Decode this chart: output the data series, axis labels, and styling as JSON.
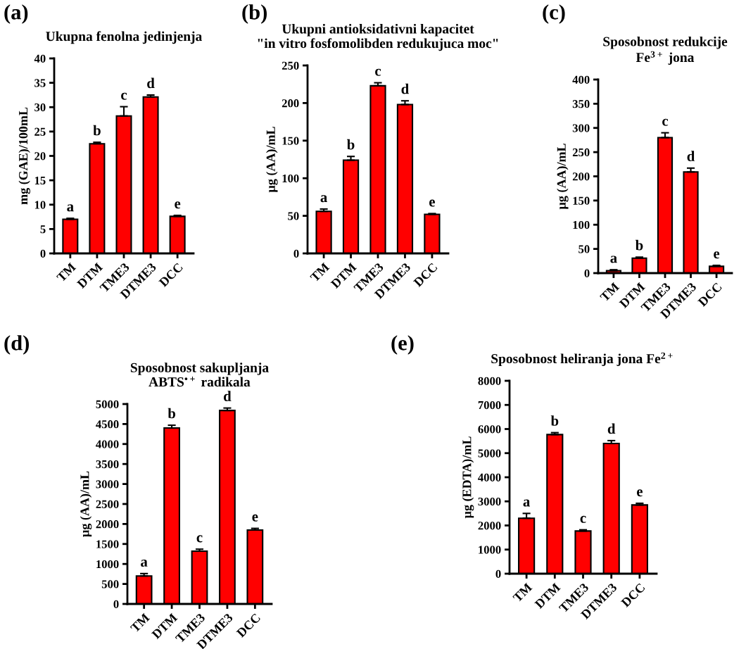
{
  "chart_data": [
    {
      "type": "bar",
      "title": "Ukupna fenolna jedinjenja",
      "ylabel": "mg (GAE)/100mL",
      "categories": [
        "TM",
        "DTM",
        "TME3",
        "DTME3",
        "DCC"
      ],
      "color": "#ff0000",
      "values": [
        7.0,
        22.5,
        28.2,
        32.1,
        7.6
      ],
      "errors": [
        [
          7.0,
          7.2
        ],
        [
          22.5,
          22.8
        ],
        [
          28.2,
          30.1
        ],
        [
          32.1,
          32.5
        ],
        [
          7.6,
          7.8
        ]
      ],
      "ylim": [
        0,
        40
      ],
      "yticks": [
        0,
        5,
        10,
        15,
        20,
        25,
        30,
        35,
        40
      ],
      "grid": false,
      "legend": false,
      "annotations": [
        "(a)",
        "a",
        "b",
        "c",
        "d",
        "e"
      ]
    },
    {
      "type": "bar",
      "title": "Ukupni antioksidativni kapacitet\n\"in vitro fosfomolibden redukujuca moc\"",
      "ylabel": "µg (AA)/mL",
      "categories": [
        "TM",
        "DTM",
        "TME3",
        "DTME3",
        "DCC"
      ],
      "color": "#ff0000",
      "values": [
        56,
        124,
        223,
        198,
        52
      ],
      "errors": [
        [
          56,
          59
        ],
        [
          124,
          129
        ],
        [
          223,
          227
        ],
        [
          198,
          203
        ],
        [
          52,
          53
        ]
      ],
      "ylim": [
        0,
        250
      ],
      "yticks": [
        0,
        50,
        100,
        150,
        200,
        250
      ],
      "grid": false,
      "legend": false,
      "annotations": [
        "(b)",
        "a",
        "b",
        "c",
        "d",
        "e"
      ]
    },
    {
      "type": "bar",
      "title": "Sposobnost redukcije\nFe$^{3+}$ jona",
      "ylabel": "µg (AA)/mL",
      "categories": [
        "TM",
        "DTM",
        "TME3",
        "DTME3",
        "DCC"
      ],
      "color": "#ff0000",
      "values": [
        5,
        31,
        280,
        209,
        14
      ],
      "errors": [
        [
          5,
          7
        ],
        [
          31,
          33
        ],
        [
          280,
          290
        ],
        [
          209,
          217
        ],
        [
          14,
          16
        ]
      ],
      "ylim": [
        0,
        400
      ],
      "yticks": [
        0,
        50,
        100,
        150,
        200,
        250,
        300,
        350,
        400
      ],
      "grid": false,
      "legend": false,
      "annotations": [
        "(c)",
        "a",
        "b",
        "c",
        "d",
        "e"
      ]
    },
    {
      "type": "bar",
      "title": "Sposobnost sakupljanja\nABTS$^{•+}$ radikala",
      "ylabel": "µg (AA)/mL",
      "categories": [
        "TM",
        "DTM",
        "TME3",
        "DTME3",
        "DCC"
      ],
      "color": "#ff0000",
      "values": [
        700,
        4400,
        1320,
        4840,
        1850
      ],
      "errors": [
        [
          700,
          760
        ],
        [
          4400,
          4470
        ],
        [
          1320,
          1370
        ],
        [
          4840,
          4900
        ],
        [
          1850,
          1890
        ]
      ],
      "ylim": [
        0,
        5000
      ],
      "yticks": [
        0,
        500,
        1000,
        1500,
        2000,
        2500,
        3000,
        3500,
        4000,
        4500,
        5000
      ],
      "grid": false,
      "legend": false,
      "annotations": [
        "(d)",
        "a",
        "b",
        "c",
        "d",
        "e"
      ]
    },
    {
      "type": "bar",
      "title": "Sposobnost heliranja jona Fe$^{2+}$",
      "ylabel": "µg (EDTA)/mL",
      "categories": [
        "TM",
        "DTM",
        "TME3",
        "DTME3",
        "DCC"
      ],
      "color": "#ff0000",
      "values": [
        2300,
        5770,
        1770,
        5400,
        2850
      ],
      "errors": [
        [
          2300,
          2500
        ],
        [
          5770,
          5850
        ],
        [
          1770,
          1820
        ],
        [
          5400,
          5520
        ],
        [
          2850,
          2920
        ]
      ],
      "ylim": [
        0,
        8000
      ],
      "yticks": [
        0,
        1000,
        2000,
        3000,
        4000,
        5000,
        6000,
        7000,
        8000
      ],
      "grid": false,
      "legend": false,
      "annotations": [
        "(e)",
        "a",
        "b",
        "c",
        "d",
        "e"
      ]
    }
  ]
}
